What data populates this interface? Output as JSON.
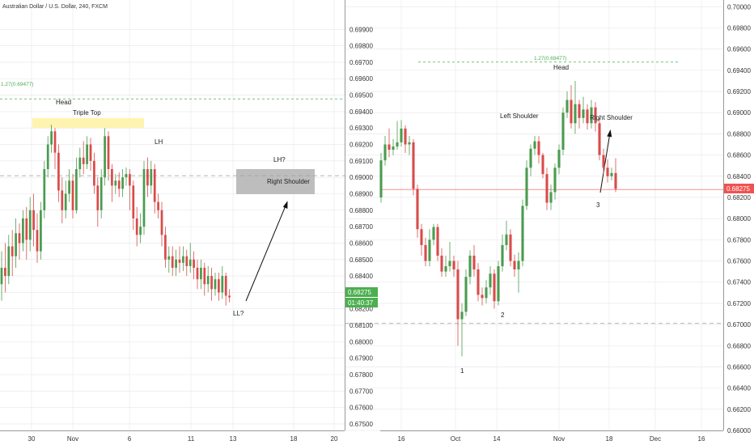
{
  "header": {
    "title": "Australian Dollar / U.S. Dollar, 240, FXCM"
  },
  "colors": {
    "up": "#4a9c4f",
    "down": "#d84c4b",
    "grid": "#e6e6e6",
    "fib": "#4caf50",
    "price_line": "#ef5350",
    "tag_green": "#4caf50",
    "tag_red": "#ef5350"
  },
  "chart_data": [
    {
      "type": "candlestick",
      "ylim": [
        0.6749,
        0.6999
      ],
      "y_ticks": [
        "0.69900",
        "0.69800",
        "0.69700",
        "0.69600",
        "0.69500",
        "0.69400",
        "0.69300",
        "0.69200",
        "0.69100",
        "0.69000",
        "0.68900",
        "0.68800",
        "0.68700",
        "0.68600",
        "0.68500",
        "0.68400",
        "0.68300",
        "0.68200",
        "0.68100",
        "0.68000",
        "0.67900",
        "0.67800",
        "0.67700",
        "0.67600",
        "0.67500"
      ],
      "x_labels": [
        "30",
        "Nov",
        "6",
        "11",
        "13",
        "18",
        "20"
      ],
      "fib_label": "1.27(0.69477)",
      "fib_value": 0.69477,
      "reference_level": 0.6901,
      "last_price": "0.68275",
      "countdown": "01:40:37",
      "annotations": {
        "head": "Head",
        "triple_top": "Triple Top",
        "lh": "LH",
        "lh_q": "LH?",
        "right_shoulder": "Right Shoulder",
        "ll_q": "LL?"
      },
      "series": [
        {
          "o": 0.6835,
          "c": 0.6845,
          "h": 0.6855,
          "l": 0.6825
        },
        {
          "o": 0.6845,
          "c": 0.684,
          "h": 0.686,
          "l": 0.683
        },
        {
          "o": 0.684,
          "c": 0.6858,
          "h": 0.6865,
          "l": 0.6835
        },
        {
          "o": 0.6858,
          "c": 0.6852,
          "h": 0.6868,
          "l": 0.684
        },
        {
          "o": 0.6852,
          "c": 0.6866,
          "h": 0.6875,
          "l": 0.6845
        },
        {
          "o": 0.6866,
          "c": 0.686,
          "h": 0.6872,
          "l": 0.685
        },
        {
          "o": 0.686,
          "c": 0.6875,
          "h": 0.688,
          "l": 0.6855
        },
        {
          "o": 0.6875,
          "c": 0.6862,
          "h": 0.6882,
          "l": 0.685
        },
        {
          "o": 0.6862,
          "c": 0.688,
          "h": 0.6888,
          "l": 0.6855
        },
        {
          "o": 0.688,
          "c": 0.6868,
          "h": 0.689,
          "l": 0.6858
        },
        {
          "o": 0.6868,
          "c": 0.6855,
          "h": 0.6878,
          "l": 0.6848
        },
        {
          "o": 0.6855,
          "c": 0.688,
          "h": 0.6885,
          "l": 0.685
        },
        {
          "o": 0.688,
          "c": 0.6905,
          "h": 0.691,
          "l": 0.6875
        },
        {
          "o": 0.6905,
          "c": 0.692,
          "h": 0.6925,
          "l": 0.69
        },
        {
          "o": 0.692,
          "c": 0.6928,
          "h": 0.6932,
          "l": 0.6915
        },
        {
          "o": 0.6928,
          "c": 0.6915,
          "h": 0.693,
          "l": 0.6905
        },
        {
          "o": 0.6915,
          "c": 0.6892,
          "h": 0.692,
          "l": 0.6885
        },
        {
          "o": 0.6892,
          "c": 0.688,
          "h": 0.69,
          "l": 0.6872
        },
        {
          "o": 0.688,
          "c": 0.689,
          "h": 0.6898,
          "l": 0.6875
        },
        {
          "o": 0.689,
          "c": 0.6898,
          "h": 0.6905,
          "l": 0.6885
        },
        {
          "o": 0.6898,
          "c": 0.688,
          "h": 0.6902,
          "l": 0.6875
        },
        {
          "o": 0.688,
          "c": 0.6905,
          "h": 0.6912,
          "l": 0.6878
        },
        {
          "o": 0.6905,
          "c": 0.6912,
          "h": 0.6918,
          "l": 0.69
        },
        {
          "o": 0.6912,
          "c": 0.6908,
          "h": 0.6922,
          "l": 0.6902
        },
        {
          "o": 0.6908,
          "c": 0.692,
          "h": 0.6925,
          "l": 0.6905
        },
        {
          "o": 0.692,
          "c": 0.691,
          "h": 0.6924,
          "l": 0.6904
        },
        {
          "o": 0.691,
          "c": 0.6895,
          "h": 0.6915,
          "l": 0.689
        },
        {
          "o": 0.6895,
          "c": 0.688,
          "h": 0.69,
          "l": 0.687
        },
        {
          "o": 0.688,
          "c": 0.69,
          "h": 0.6905,
          "l": 0.6875
        },
        {
          "o": 0.69,
          "c": 0.6925,
          "h": 0.693,
          "l": 0.6895
        },
        {
          "o": 0.6925,
          "c": 0.6905,
          "h": 0.6928,
          "l": 0.6898
        },
        {
          "o": 0.6905,
          "c": 0.6895,
          "h": 0.6908,
          "l": 0.6885
        },
        {
          "o": 0.6895,
          "c": 0.6898,
          "h": 0.6902,
          "l": 0.689
        },
        {
          "o": 0.6898,
          "c": 0.6893,
          "h": 0.6903,
          "l": 0.6888
        },
        {
          "o": 0.6893,
          "c": 0.69,
          "h": 0.6905,
          "l": 0.6888
        },
        {
          "o": 0.69,
          "c": 0.6902,
          "h": 0.6906,
          "l": 0.6895
        },
        {
          "o": 0.6902,
          "c": 0.6895,
          "h": 0.6905,
          "l": 0.688
        },
        {
          "o": 0.6895,
          "c": 0.6875,
          "h": 0.6898,
          "l": 0.6868
        },
        {
          "o": 0.6875,
          "c": 0.6865,
          "h": 0.6882,
          "l": 0.6858
        },
        {
          "o": 0.6865,
          "c": 0.687,
          "h": 0.6878,
          "l": 0.686
        },
        {
          "o": 0.687,
          "c": 0.6905,
          "h": 0.691,
          "l": 0.6865
        },
        {
          "o": 0.6905,
          "c": 0.6895,
          "h": 0.6912,
          "l": 0.6888
        },
        {
          "o": 0.6895,
          "c": 0.6905,
          "h": 0.691,
          "l": 0.689
        },
        {
          "o": 0.6905,
          "c": 0.6885,
          "h": 0.6908,
          "l": 0.6878
        },
        {
          "o": 0.6885,
          "c": 0.688,
          "h": 0.689,
          "l": 0.6875
        },
        {
          "o": 0.688,
          "c": 0.6865,
          "h": 0.6885,
          "l": 0.6858
        },
        {
          "o": 0.6865,
          "c": 0.685,
          "h": 0.687,
          "l": 0.6845
        },
        {
          "o": 0.685,
          "c": 0.6852,
          "h": 0.6858,
          "l": 0.6842
        },
        {
          "o": 0.6852,
          "c": 0.6845,
          "h": 0.6858,
          "l": 0.684
        },
        {
          "o": 0.6845,
          "c": 0.685,
          "h": 0.6856,
          "l": 0.684
        },
        {
          "o": 0.685,
          "c": 0.6848,
          "h": 0.6858,
          "l": 0.6842
        },
        {
          "o": 0.6848,
          "c": 0.6852,
          "h": 0.6858,
          "l": 0.6843
        },
        {
          "o": 0.6852,
          "c": 0.6846,
          "h": 0.6856,
          "l": 0.684
        },
        {
          "o": 0.6846,
          "c": 0.685,
          "h": 0.686,
          "l": 0.6842
        },
        {
          "o": 0.685,
          "c": 0.6845,
          "h": 0.6855,
          "l": 0.6838
        },
        {
          "o": 0.6845,
          "c": 0.6838,
          "h": 0.685,
          "l": 0.6832
        },
        {
          "o": 0.6838,
          "c": 0.6845,
          "h": 0.685,
          "l": 0.6832
        },
        {
          "o": 0.6845,
          "c": 0.6835,
          "h": 0.6848,
          "l": 0.6828
        },
        {
          "o": 0.6835,
          "c": 0.684,
          "h": 0.6846,
          "l": 0.683
        },
        {
          "o": 0.684,
          "c": 0.6832,
          "h": 0.6845,
          "l": 0.6825
        },
        {
          "o": 0.6832,
          "c": 0.6838,
          "h": 0.6842,
          "l": 0.6828
        },
        {
          "o": 0.6838,
          "c": 0.683,
          "h": 0.6842,
          "l": 0.6825
        },
        {
          "o": 0.683,
          "c": 0.684,
          "h": 0.6846,
          "l": 0.6826
        },
        {
          "o": 0.684,
          "c": 0.6828,
          "h": 0.6842,
          "l": 0.6822
        },
        {
          "o": 0.6828,
          "c": 0.6827,
          "h": 0.6832,
          "l": 0.6824
        }
      ]
    },
    {
      "type": "candlestick",
      "ylim": [
        0.66,
        0.7001
      ],
      "y_ticks": [
        "0.70000",
        "0.69800",
        "0.69600",
        "0.69400",
        "0.69200",
        "0.69000",
        "0.68800",
        "0.68600",
        "0.68400",
        "0.68200",
        "0.68000",
        "0.67800",
        "0.67600",
        "0.67400",
        "0.67200",
        "0.67000",
        "0.66800",
        "0.66600",
        "0.66400",
        "0.66200",
        "0.66000"
      ],
      "x_labels": [
        "16",
        "Oct",
        "14",
        "Nov",
        "18",
        "Dec",
        "16"
      ],
      "fib_label": "1.27(0.69477)",
      "fib_value": 0.69477,
      "reference_level": 0.6701,
      "last_price": "0.68275",
      "annotations": {
        "head": "Head",
        "left_shoulder": "Left Shoulder",
        "right_shoulder": "Right Shoulder",
        "p1": "1",
        "p2": "2",
        "p3": "3"
      },
      "series": [
        {
          "o": 0.682,
          "c": 0.6855,
          "h": 0.6862,
          "l": 0.6815
        },
        {
          "o": 0.6855,
          "c": 0.687,
          "h": 0.6878,
          "l": 0.685
        },
        {
          "o": 0.687,
          "c": 0.6865,
          "h": 0.6885,
          "l": 0.6858
        },
        {
          "o": 0.6865,
          "c": 0.6868,
          "h": 0.6875,
          "l": 0.686
        },
        {
          "o": 0.6868,
          "c": 0.6872,
          "h": 0.6892,
          "l": 0.6865
        },
        {
          "o": 0.6872,
          "c": 0.6885,
          "h": 0.6893,
          "l": 0.6868
        },
        {
          "o": 0.6885,
          "c": 0.687,
          "h": 0.6888,
          "l": 0.6862
        },
        {
          "o": 0.687,
          "c": 0.6872,
          "h": 0.6878,
          "l": 0.686
        },
        {
          "o": 0.6872,
          "c": 0.6828,
          "h": 0.6875,
          "l": 0.6822
        },
        {
          "o": 0.6828,
          "c": 0.679,
          "h": 0.6832,
          "l": 0.6782
        },
        {
          "o": 0.679,
          "c": 0.6775,
          "h": 0.6795,
          "l": 0.6765
        },
        {
          "o": 0.6775,
          "c": 0.676,
          "h": 0.6782,
          "l": 0.6755
        },
        {
          "o": 0.676,
          "c": 0.678,
          "h": 0.679,
          "l": 0.6755
        },
        {
          "o": 0.678,
          "c": 0.6792,
          "h": 0.6795,
          "l": 0.6775
        },
        {
          "o": 0.6792,
          "c": 0.6765,
          "h": 0.6795,
          "l": 0.676
        },
        {
          "o": 0.6765,
          "c": 0.675,
          "h": 0.6772,
          "l": 0.6745
        },
        {
          "o": 0.675,
          "c": 0.6755,
          "h": 0.6765,
          "l": 0.6745
        },
        {
          "o": 0.6755,
          "c": 0.676,
          "h": 0.6778,
          "l": 0.675
        },
        {
          "o": 0.676,
          "c": 0.6752,
          "h": 0.6765,
          "l": 0.6745
        },
        {
          "o": 0.6752,
          "c": 0.6705,
          "h": 0.676,
          "l": 0.668
        },
        {
          "o": 0.6705,
          "c": 0.6712,
          "h": 0.672,
          "l": 0.667
        },
        {
          "o": 0.6712,
          "c": 0.6745,
          "h": 0.6752,
          "l": 0.6708
        },
        {
          "o": 0.6745,
          "c": 0.6765,
          "h": 0.677,
          "l": 0.6738
        },
        {
          "o": 0.6765,
          "c": 0.6752,
          "h": 0.6775,
          "l": 0.6745
        },
        {
          "o": 0.6752,
          "c": 0.6728,
          "h": 0.6758,
          "l": 0.6722
        },
        {
          "o": 0.6728,
          "c": 0.6725,
          "h": 0.6735,
          "l": 0.6718
        },
        {
          "o": 0.6725,
          "c": 0.6735,
          "h": 0.6742,
          "l": 0.672
        },
        {
          "o": 0.6735,
          "c": 0.6748,
          "h": 0.6755,
          "l": 0.6728
        },
        {
          "o": 0.6748,
          "c": 0.6722,
          "h": 0.6752,
          "l": 0.6715
        },
        {
          "o": 0.6722,
          "c": 0.6755,
          "h": 0.676,
          "l": 0.6718
        },
        {
          "o": 0.6755,
          "c": 0.6775,
          "h": 0.6785,
          "l": 0.675
        },
        {
          "o": 0.6775,
          "c": 0.6785,
          "h": 0.6798,
          "l": 0.677
        },
        {
          "o": 0.6785,
          "c": 0.676,
          "h": 0.679,
          "l": 0.6755
        },
        {
          "o": 0.676,
          "c": 0.6752,
          "h": 0.6766,
          "l": 0.6745
        },
        {
          "o": 0.6752,
          "c": 0.676,
          "h": 0.6768,
          "l": 0.673
        },
        {
          "o": 0.676,
          "c": 0.6812,
          "h": 0.6818,
          "l": 0.6755
        },
        {
          "o": 0.6812,
          "c": 0.6848,
          "h": 0.6855,
          "l": 0.6808
        },
        {
          "o": 0.6848,
          "c": 0.6866,
          "h": 0.687,
          "l": 0.684
        },
        {
          "o": 0.6866,
          "c": 0.6873,
          "h": 0.6878,
          "l": 0.686
        },
        {
          "o": 0.6873,
          "c": 0.686,
          "h": 0.6878,
          "l": 0.6852
        },
        {
          "o": 0.686,
          "c": 0.6842,
          "h": 0.6862,
          "l": 0.6838
        },
        {
          "o": 0.6842,
          "c": 0.6815,
          "h": 0.6848,
          "l": 0.6808
        },
        {
          "o": 0.6815,
          "c": 0.6825,
          "h": 0.6832,
          "l": 0.6808
        },
        {
          "o": 0.6825,
          "c": 0.6848,
          "h": 0.6852,
          "l": 0.6818
        },
        {
          "o": 0.6848,
          "c": 0.6865,
          "h": 0.687,
          "l": 0.6842
        },
        {
          "o": 0.6865,
          "c": 0.69,
          "h": 0.6905,
          "l": 0.686
        },
        {
          "o": 0.69,
          "c": 0.6912,
          "h": 0.692,
          "l": 0.6895
        },
        {
          "o": 0.6912,
          "c": 0.689,
          "h": 0.6926,
          "l": 0.6885
        },
        {
          "o": 0.689,
          "c": 0.6908,
          "h": 0.693,
          "l": 0.688
        },
        {
          "o": 0.6908,
          "c": 0.6895,
          "h": 0.6912,
          "l": 0.6885
        },
        {
          "o": 0.6895,
          "c": 0.6903,
          "h": 0.6915,
          "l": 0.689
        },
        {
          "o": 0.6903,
          "c": 0.689,
          "h": 0.6908,
          "l": 0.6884
        },
        {
          "o": 0.689,
          "c": 0.6905,
          "h": 0.6912,
          "l": 0.6885
        },
        {
          "o": 0.6905,
          "c": 0.689,
          "h": 0.691,
          "l": 0.6882
        },
        {
          "o": 0.689,
          "c": 0.686,
          "h": 0.6895,
          "l": 0.6855
        },
        {
          "o": 0.686,
          "c": 0.6848,
          "h": 0.6866,
          "l": 0.6842
        },
        {
          "o": 0.6848,
          "c": 0.684,
          "h": 0.6856,
          "l": 0.6834
        },
        {
          "o": 0.684,
          "c": 0.6843,
          "h": 0.6848,
          "l": 0.6836
        },
        {
          "o": 0.6843,
          "c": 0.6828,
          "h": 0.6857,
          "l": 0.6825
        }
      ]
    }
  ]
}
